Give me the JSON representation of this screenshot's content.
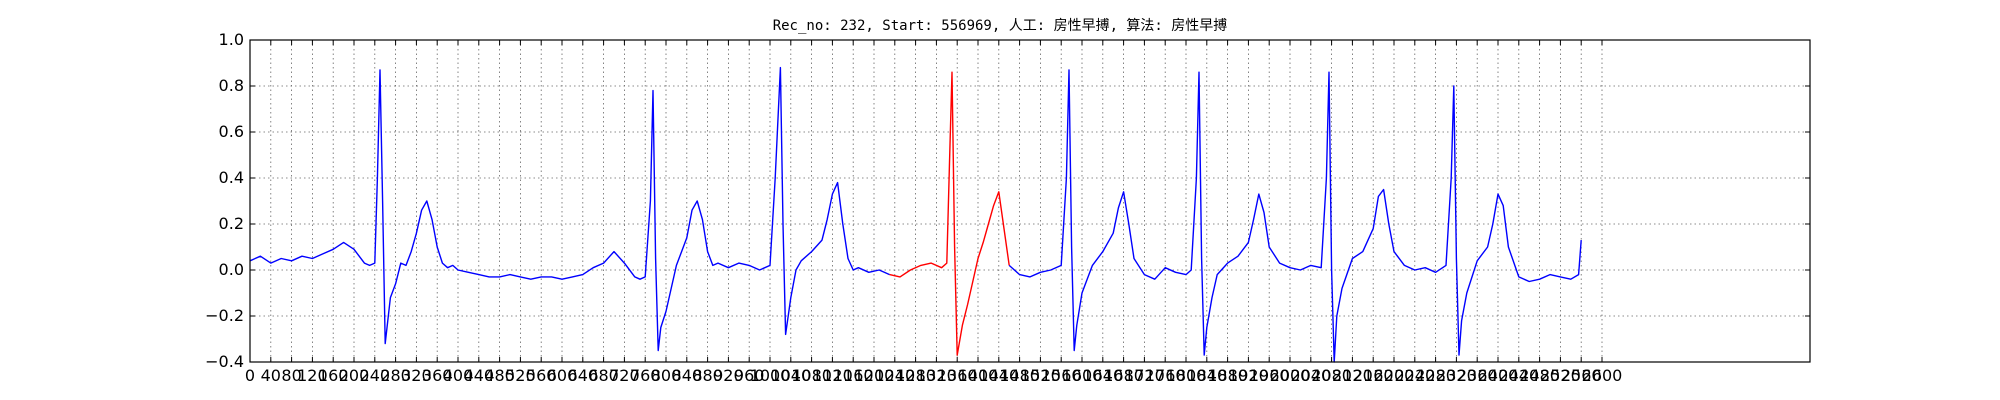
{
  "chart_data": {
    "type": "line",
    "title": "Rec_no: 232, Start: 556969, 人工: 房性早搏, 算法: 房性早搏",
    "xlabel": "",
    "ylabel": "",
    "xlim": [
      0,
      3000
    ],
    "ylim": [
      -0.4,
      1.0
    ],
    "grid": true,
    "grid_style": "dotted",
    "yticks": [
      -0.4,
      -0.2,
      0.0,
      0.2,
      0.4,
      0.6,
      0.8,
      1.0
    ],
    "ytick_labels": [
      "−0.4",
      "−0.2",
      "0.0",
      "0.2",
      "0.4",
      "0.6",
      "0.8",
      "1.0"
    ],
    "xticks": [
      0,
      40,
      80,
      120,
      160,
      200,
      240,
      280,
      320,
      360,
      400,
      440,
      480,
      520,
      560,
      600,
      640,
      680,
      720,
      760,
      800,
      840,
      880,
      920,
      960,
      1000,
      1040,
      1080,
      1120,
      1160,
      1200,
      1240,
      1280,
      1320,
      1360,
      1400,
      1440,
      1480,
      1520,
      1560,
      1600,
      1640,
      1680,
      1720,
      1760,
      1800,
      1840,
      1880,
      1920,
      1960,
      2000,
      2040,
      2080,
      2120,
      2160,
      2200,
      2240,
      2280,
      2320,
      2360,
      2400,
      2440,
      2480,
      2520,
      2560,
      2600
    ],
    "colors": {
      "normal": "#0000ff",
      "highlight": "#ff0000",
      "grid": "#666666",
      "axis": "#000000"
    },
    "series": [
      {
        "color": "#0000ff",
        "x": [
          0,
          20,
          40,
          60,
          80,
          100,
          120,
          140,
          160,
          180,
          200,
          210,
          220,
          230,
          240,
          245,
          250,
          255,
          260,
          265,
          270,
          280,
          290,
          300,
          310,
          320,
          330,
          340,
          350,
          360,
          370,
          380,
          390,
          400,
          420,
          440,
          460,
          480,
          500,
          520,
          540,
          560,
          580,
          600,
          620,
          640,
          660,
          680,
          700,
          720,
          740,
          750,
          760,
          770,
          775,
          780,
          785,
          790,
          800,
          810,
          820,
          830,
          840,
          850,
          860,
          870,
          880,
          890,
          900,
          920,
          940,
          960,
          980,
          1000,
          1010,
          1020,
          1025,
          1030,
          1035,
          1040,
          1050,
          1060,
          1080,
          1100,
          1110,
          1120,
          1130,
          1140,
          1150,
          1160,
          1170,
          1190,
          1210,
          1230
        ],
        "y": [
          0.04,
          0.06,
          0.03,
          0.05,
          0.04,
          0.06,
          0.05,
          0.07,
          0.09,
          0.12,
          0.09,
          0.06,
          0.03,
          0.02,
          0.03,
          0.4,
          0.87,
          0.3,
          -0.32,
          -0.22,
          -0.12,
          -0.06,
          0.03,
          0.02,
          0.08,
          0.16,
          0.26,
          0.3,
          0.22,
          0.1,
          0.03,
          0.01,
          0.02,
          0.0,
          -0.01,
          -0.02,
          -0.03,
          -0.03,
          -0.02,
          -0.03,
          -0.04,
          -0.03,
          -0.03,
          -0.04,
          -0.03,
          -0.02,
          0.01,
          0.03,
          0.08,
          0.03,
          -0.03,
          -0.04,
          -0.03,
          0.3,
          0.78,
          0.05,
          -0.35,
          -0.25,
          -0.18,
          -0.08,
          0.02,
          0.08,
          0.14,
          0.26,
          0.3,
          0.22,
          0.08,
          0.02,
          0.03,
          0.01,
          0.03,
          0.02,
          0.0,
          0.02,
          0.4,
          0.88,
          0.2,
          -0.28,
          -0.2,
          -0.12,
          0.0,
          0.04,
          0.08,
          0.13,
          0.22,
          0.33,
          0.38,
          0.2,
          0.05,
          0.0,
          0.01,
          -0.01,
          0.0,
          -0.02
        ]
      },
      {
        "color": "#ff0000",
        "x": [
          1230,
          1250,
          1270,
          1290,
          1310,
          1330,
          1340,
          1345,
          1350,
          1355,
          1360,
          1370,
          1380,
          1390,
          1400,
          1410,
          1420,
          1430,
          1440,
          1450,
          1460
        ],
        "y": [
          -0.02,
          -0.03,
          0.0,
          0.02,
          0.03,
          0.01,
          0.03,
          0.45,
          0.86,
          0.1,
          -0.37,
          -0.24,
          -0.15,
          -0.05,
          0.05,
          0.12,
          0.2,
          0.28,
          0.34,
          0.18,
          0.02
        ]
      },
      {
        "color": "#0000ff",
        "x": [
          1460,
          1480,
          1500,
          1520,
          1540,
          1560,
          1570,
          1575,
          1580,
          1585,
          1590,
          1600,
          1620,
          1640,
          1660,
          1670,
          1680,
          1690,
          1700,
          1720,
          1740,
          1760,
          1780,
          1800,
          1810,
          1820,
          1825,
          1830,
          1835,
          1840,
          1850,
          1860,
          1880,
          1900,
          1920,
          1930,
          1940,
          1950,
          1960,
          1980,
          2000,
          2020,
          2040,
          2060,
          2070,
          2075,
          2080,
          2085,
          2090,
          2100,
          2120,
          2140,
          2160,
          2170,
          2180,
          2190,
          2200,
          2220,
          2240,
          2260,
          2280,
          2300,
          2310,
          2315,
          2320,
          2325,
          2330,
          2340,
          2360,
          2380,
          2390,
          2400,
          2410,
          2420,
          2440,
          2460,
          2480,
          2500,
          2520,
          2540,
          2555,
          2560
        ],
        "y": [
          0.02,
          -0.02,
          -0.03,
          -0.01,
          0.0,
          0.02,
          0.4,
          0.87,
          0.1,
          -0.35,
          -0.24,
          -0.1,
          0.02,
          0.08,
          0.16,
          0.27,
          0.34,
          0.2,
          0.05,
          -0.02,
          -0.04,
          0.01,
          -0.01,
          -0.02,
          0.0,
          0.4,
          0.86,
          0.05,
          -0.37,
          -0.25,
          -0.12,
          -0.02,
          0.03,
          0.06,
          0.12,
          0.22,
          0.33,
          0.25,
          0.1,
          0.03,
          0.01,
          0.0,
          0.02,
          0.01,
          0.4,
          0.86,
          0.0,
          -0.4,
          -0.2,
          -0.08,
          0.05,
          0.08,
          0.18,
          0.32,
          0.35,
          0.2,
          0.08,
          0.02,
          0.0,
          0.01,
          -0.01,
          0.02,
          0.4,
          0.8,
          0.05,
          -0.37,
          -0.22,
          -0.1,
          0.04,
          0.1,
          0.2,
          0.33,
          0.28,
          0.1,
          -0.03,
          -0.05,
          -0.04,
          -0.02,
          -0.03,
          -0.04,
          -0.02,
          0.13
        ]
      }
    ]
  }
}
